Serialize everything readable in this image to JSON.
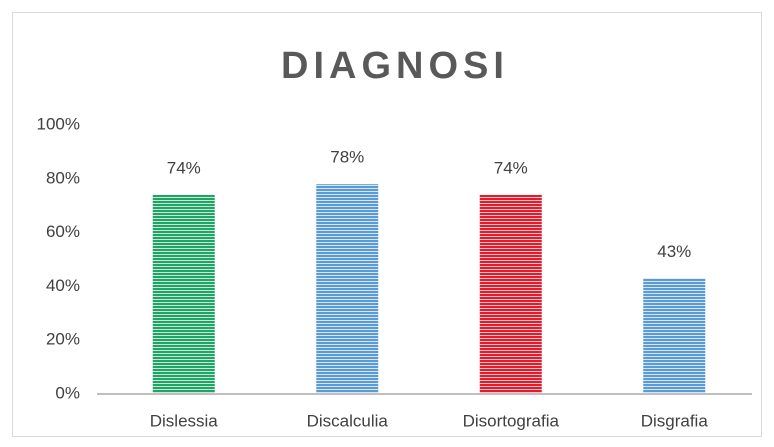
{
  "chart_data": {
    "type": "bar",
    "title": "DIAGNOSI",
    "categories": [
      "Dislessia",
      "Discalculia",
      "Disortografia",
      "Disgrafia"
    ],
    "values": [
      74,
      78,
      74,
      43
    ],
    "value_labels": [
      "74%",
      "78%",
      "74%",
      "43%"
    ],
    "colors": [
      "#1fa463",
      "#5b9bd5",
      "#e31b2b",
      "#5b9bd5"
    ],
    "ylim": [
      0,
      100
    ],
    "yticks": [
      {
        "value": 0,
        "label": "0%"
      },
      {
        "value": 20,
        "label": "20%"
      },
      {
        "value": 40,
        "label": "40%"
      },
      {
        "value": 60,
        "label": "60%"
      },
      {
        "value": 80,
        "label": "80%"
      },
      {
        "value": 100,
        "label": "100%"
      }
    ],
    "grid": false
  }
}
